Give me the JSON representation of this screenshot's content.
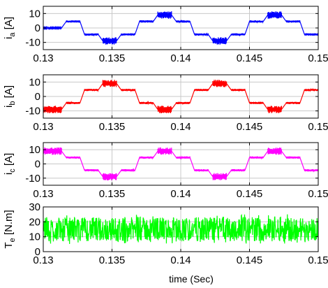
{
  "chart_data": [
    {
      "type": "line",
      "ylabel_main": "i",
      "ylabel_sub": "a",
      "ylabel_unit": "[A]",
      "color": "#0000ff",
      "xlim": [
        0.13,
        0.15
      ],
      "ylim": [
        -15,
        15
      ],
      "xticks": [
        0.13,
        0.135,
        0.14,
        0.145,
        0.15
      ],
      "xticklabels": [
        "0.13",
        "0.135",
        "0.14",
        "0.145",
        "0.15"
      ],
      "yticks": [
        -10,
        0,
        10
      ],
      "yticklabels": [
        "-10",
        "0",
        "10"
      ],
      "grid": true,
      "series": [
        {
          "x": [
            0.13,
            0.13033,
            0.13133,
            0.13167,
            0.13267,
            0.133,
            0.134,
            0.13433,
            0.13533,
            0.13567,
            0.13667,
            0.137,
            0.138,
            0.13833,
            0.13933,
            0.13967,
            0.14067,
            0.141,
            0.142,
            0.14233,
            0.14333,
            0.14367,
            0.14467,
            0.145,
            0.146,
            0.14633,
            0.14733,
            0.14767,
            0.14867,
            0.149,
            0.15
          ],
          "y": [
            0,
            0,
            0,
            4.5,
            4.5,
            -4.5,
            -4.5,
            -9,
            -9,
            -4.5,
            -4.5,
            4.5,
            4.5,
            9,
            9,
            4.5,
            4.5,
            -4.5,
            -4.5,
            -9,
            -9,
            -4.5,
            -4.5,
            4.5,
            4.5,
            9,
            9,
            4.5,
            4.5,
            -4.5,
            -4.5
          ]
        }
      ]
    },
    {
      "type": "line",
      "ylabel_main": "i",
      "ylabel_sub": "b",
      "ylabel_unit": "[A]",
      "color": "#ff0000",
      "xlim": [
        0.13,
        0.15
      ],
      "ylim": [
        -15,
        15
      ],
      "xticks": [
        0.13,
        0.135,
        0.14,
        0.145,
        0.15
      ],
      "xticklabels": [
        "0.13",
        "0.135",
        "0.14",
        "0.145",
        "0.15"
      ],
      "yticks": [
        -10,
        0,
        10
      ],
      "yticklabels": [
        "-10",
        "0",
        "10"
      ],
      "grid": true,
      "series": [
        {
          "x": [
            0.13,
            0.13033,
            0.13133,
            0.13167,
            0.13267,
            0.133,
            0.134,
            0.13433,
            0.13533,
            0.13567,
            0.13667,
            0.137,
            0.138,
            0.13833,
            0.13933,
            0.13967,
            0.14067,
            0.141,
            0.142,
            0.14233,
            0.14333,
            0.14367,
            0.14467,
            0.145,
            0.146,
            0.14633,
            0.14733,
            0.14767,
            0.14867,
            0.149,
            0.15
          ],
          "y": [
            -9,
            -9,
            -9,
            -4.5,
            -4.5,
            4.5,
            4.5,
            9,
            9,
            4.5,
            4.5,
            -4.5,
            -4.5,
            -9,
            -9,
            -4.5,
            -4.5,
            4.5,
            4.5,
            9,
            9,
            4.5,
            4.5,
            -4.5,
            -4.5,
            -9,
            -9,
            -4.5,
            -4.5,
            4.5,
            4.5
          ]
        }
      ]
    },
    {
      "type": "line",
      "ylabel_main": "i",
      "ylabel_sub": "c",
      "ylabel_unit": "[A]",
      "color": "#ff00ff",
      "xlim": [
        0.13,
        0.15
      ],
      "ylim": [
        -15,
        15
      ],
      "xticks": [
        0.13,
        0.135,
        0.14,
        0.145,
        0.15
      ],
      "xticklabels": [
        "0.13",
        "0.135",
        "0.14",
        "0.145",
        "0.15"
      ],
      "yticks": [
        -10,
        0,
        10
      ],
      "yticklabels": [
        "-10",
        "0",
        "10"
      ],
      "grid": true,
      "series": [
        {
          "x": [
            0.13,
            0.13033,
            0.13133,
            0.13167,
            0.13267,
            0.133,
            0.134,
            0.13433,
            0.13533,
            0.13567,
            0.13667,
            0.137,
            0.138,
            0.13833,
            0.13933,
            0.13967,
            0.14067,
            0.141,
            0.142,
            0.14233,
            0.14333,
            0.14367,
            0.14467,
            0.145,
            0.146,
            0.14633,
            0.14733,
            0.14767,
            0.14867,
            0.149,
            0.15
          ],
          "y": [
            9,
            9,
            9,
            4.5,
            4.5,
            -4.5,
            -4.5,
            -9,
            -9,
            -4.5,
            -4.5,
            4.5,
            4.5,
            9,
            9,
            4.5,
            4.5,
            -4.5,
            -4.5,
            -9,
            -9,
            -4.5,
            -4.5,
            4.5,
            4.5,
            9,
            9,
            4.5,
            4.5,
            -4.5,
            -4.5
          ]
        }
      ]
    },
    {
      "type": "line",
      "ylabel_main": "T",
      "ylabel_sub": "e",
      "ylabel_unit": "[N.m]",
      "color": "#00ff00",
      "xlim": [
        0.13,
        0.15
      ],
      "ylim": [
        0,
        30
      ],
      "xticks": [
        0.13,
        0.135,
        0.14,
        0.145,
        0.15
      ],
      "xticklabels": [
        "0.13",
        "0.135",
        "0.14",
        "0.145",
        "0.15"
      ],
      "yticks": [
        0,
        10,
        20,
        30
      ],
      "yticklabels": [
        "0",
        "10",
        "20",
        "30"
      ],
      "grid": true,
      "xlabel": "time (Sec)",
      "series": [
        {
          "x": [
            0.13,
            0.15
          ],
          "y": [
            15,
            15
          ],
          "ripple_min": 5,
          "ripple_max": 25
        }
      ]
    }
  ]
}
